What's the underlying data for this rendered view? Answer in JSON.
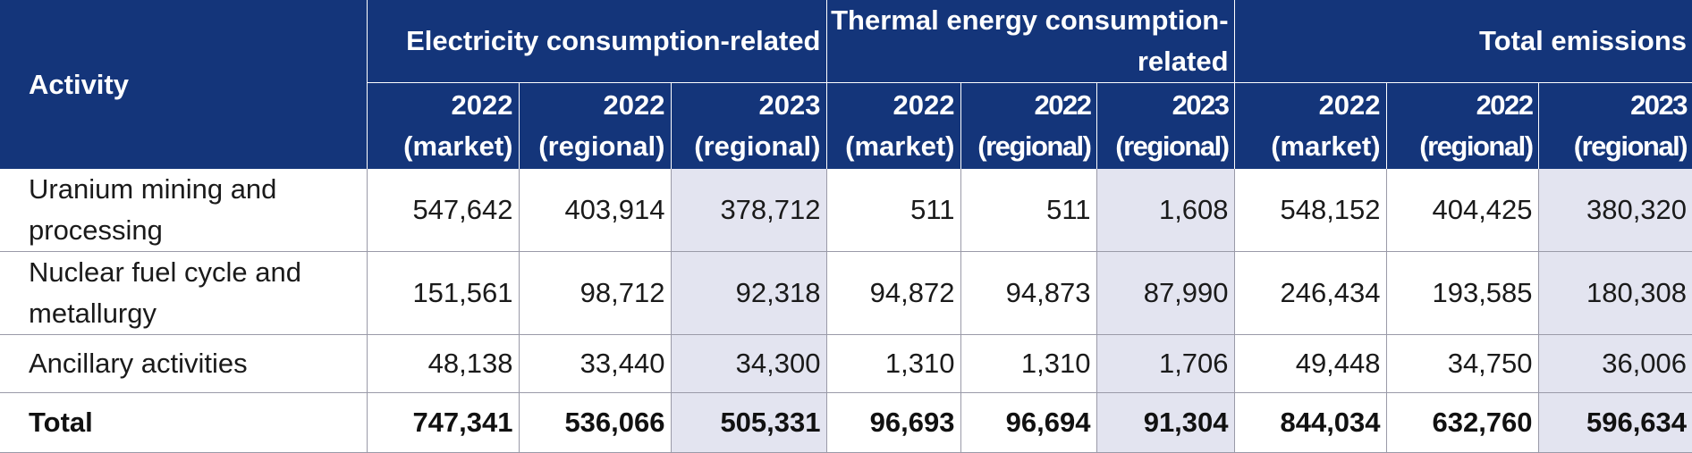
{
  "table": {
    "activity_header": "Activity",
    "groups": [
      {
        "label": "Electricity consumption-related"
      },
      {
        "label": "Thermal energy consumption-related"
      },
      {
        "label": "Total emissions"
      }
    ],
    "columns": [
      {
        "year": "2022",
        "basis": "(market)"
      },
      {
        "year": "2022",
        "basis": "(regional)"
      },
      {
        "year": "2023",
        "basis": "(regional)"
      },
      {
        "year": "2022",
        "basis": "(market)"
      },
      {
        "year": "2022",
        "basis": "(regional)"
      },
      {
        "year": "2023",
        "basis": "(regional)"
      },
      {
        "year": "2022",
        "basis": "(market)"
      },
      {
        "year": "2022",
        "basis": "(regional)"
      },
      {
        "year": "2023",
        "basis": "(regional)"
      }
    ],
    "rows": [
      {
        "activity": "Uranium mining and processing",
        "values": [
          "547,642",
          "403,914",
          "378,712",
          "511",
          "511",
          "1,608",
          "548,152",
          "404,425",
          "380,320"
        ]
      },
      {
        "activity": "Nuclear fuel cycle and metallurgy",
        "values": [
          "151,561",
          "98,712",
          "92,318",
          "94,872",
          "94,873",
          "87,990",
          "246,434",
          "193,585",
          "180,308"
        ]
      },
      {
        "activity": "Ancillary activities",
        "values": [
          "48,138",
          "33,440",
          "34,300",
          "1,310",
          "1,310",
          "1,706",
          "49,448",
          "34,750",
          "36,006"
        ]
      }
    ],
    "total": {
      "activity": "Total",
      "values": [
        "747,341",
        "536,066",
        "505,331",
        "96,693",
        "96,694",
        "91,304",
        "844,034",
        "632,760",
        "596,634"
      ]
    }
  },
  "colors": {
    "header_bg": "#14357a",
    "highlight_bg": "#e3e4f0",
    "border": "#9a9aa8"
  }
}
